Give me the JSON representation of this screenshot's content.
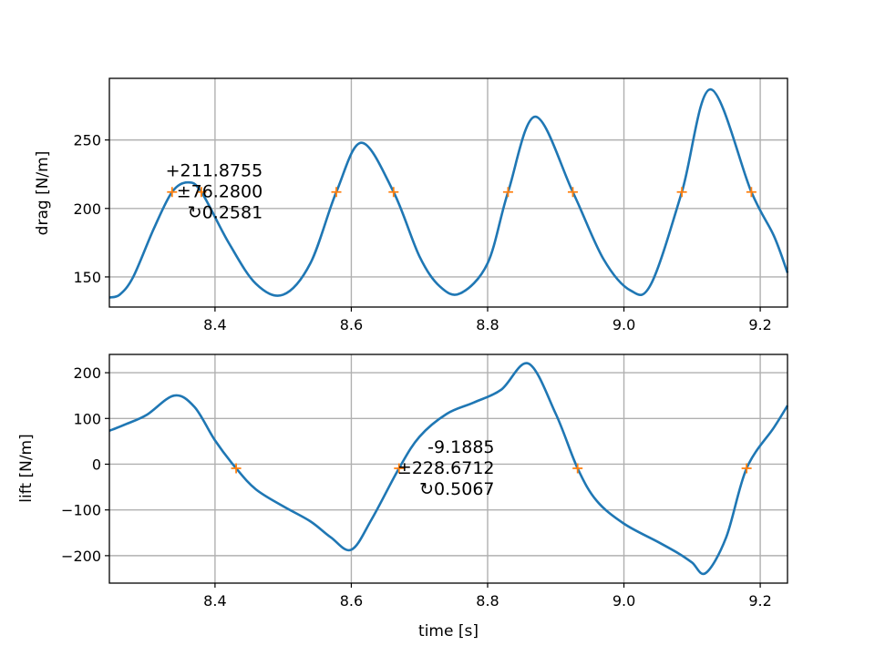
{
  "colors": {
    "curve": "#1f77b4",
    "marker": "#ff7f0e"
  },
  "chart_data": [
    {
      "type": "line",
      "xlabel": "",
      "ylabel": "drag [N/m]",
      "xlim": [
        8.245,
        9.24
      ],
      "ylim": [
        128,
        295
      ],
      "xticks": [
        "8.4",
        "8.6",
        "8.8",
        "9.0",
        "9.2"
      ],
      "yticks": [
        "150",
        "200",
        "250"
      ],
      "grid": true,
      "annotation": {
        "mean": "+211.8755",
        "amplitude": "±76.2800",
        "period": "↻0.2581",
        "x": 8.47,
        "y": 212
      },
      "series": [
        {
          "x": [
            8.245,
            8.26,
            8.28,
            8.31,
            8.337,
            8.36,
            8.38,
            8.42,
            8.46,
            8.5,
            8.54,
            8.578,
            8.615,
            8.662,
            8.7,
            8.73,
            8.76,
            8.8,
            8.83,
            8.87,
            8.925,
            8.97,
            9.01,
            9.04,
            9.085,
            9.127,
            9.187,
            9.22,
            9.24
          ],
          "y": [
            135,
            137,
            150,
            185,
            212,
            219,
            212,
            175,
            145,
            137,
            160,
            212,
            248,
            212,
            165,
            143,
            138,
            160,
            212,
            267,
            212,
            163,
            140,
            145,
            212,
            287,
            212,
            180,
            153
          ]
        }
      ],
      "markers": {
        "x": [
          8.337,
          8.38,
          8.578,
          8.662,
          8.83,
          8.925,
          9.085,
          9.187
        ],
        "y": [
          212,
          212,
          212,
          212,
          212,
          212,
          212,
          212
        ]
      }
    },
    {
      "type": "line",
      "xlabel": "time [s]",
      "ylabel": "lift [N/m]",
      "xlim": [
        8.245,
        9.24
      ],
      "ylim": [
        -260,
        240
      ],
      "xticks": [
        "8.4",
        "8.6",
        "8.8",
        "9.0",
        "9.2"
      ],
      "yticks": [
        "200",
        "100",
        "0",
        "−100",
        "−200"
      ],
      "grid": true,
      "annotation": {
        "mean": "-9.1885",
        "amplitude": "±228.6712",
        "period": "↻0.5067",
        "x": 8.81,
        "y": -9
      },
      "series": [
        {
          "x": [
            8.245,
            8.27,
            8.3,
            8.34,
            8.37,
            8.4,
            8.431,
            8.46,
            8.5,
            8.54,
            8.57,
            8.6,
            8.63,
            8.67,
            8.7,
            8.74,
            8.78,
            8.82,
            8.86,
            8.9,
            8.932,
            8.96,
            9.0,
            9.05,
            9.08,
            9.1,
            9.12,
            9.15,
            9.18,
            9.22,
            9.24
          ],
          "y": [
            73,
            88,
            108,
            150,
            125,
            52,
            -9,
            -55,
            -92,
            -125,
            -160,
            -187,
            -120,
            -9,
            60,
            110,
            135,
            163,
            220,
            110,
            -9,
            -80,
            -130,
            -170,
            -195,
            -215,
            -238,
            -160,
            -9,
            80,
            128
          ]
        }
      ],
      "markers": {
        "x": [
          8.431,
          8.67,
          8.932,
          9.18
        ],
        "y": [
          -9,
          -9,
          -9,
          -9
        ]
      }
    }
  ]
}
